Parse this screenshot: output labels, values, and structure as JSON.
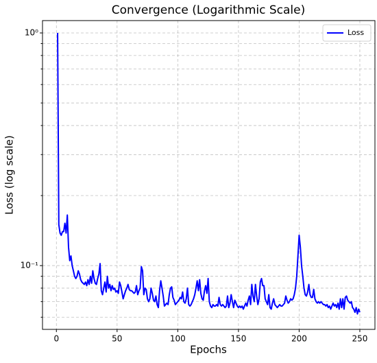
{
  "chart_data": {
    "type": "line",
    "title": "Convergence (Logarithmic Scale)",
    "xlabel": "Epochs",
    "ylabel": "Loss (log scale)",
    "x": [
      1,
      2,
      3,
      4,
      5,
      6,
      7,
      8,
      9,
      10,
      11,
      12,
      13,
      14,
      15,
      16,
      17,
      18,
      19,
      20,
      21,
      22,
      23,
      24,
      25,
      26,
      27,
      28,
      29,
      30,
      31,
      32,
      33,
      34,
      35,
      36,
      37,
      38,
      39,
      40,
      41,
      42,
      43,
      44,
      45,
      46,
      47,
      48,
      49,
      50,
      51,
      52,
      53,
      54,
      55,
      56,
      57,
      58,
      59,
      60,
      61,
      62,
      63,
      64,
      65,
      66,
      67,
      68,
      69,
      70,
      71,
      72,
      73,
      74,
      75,
      76,
      77,
      78,
      79,
      80,
      81,
      82,
      83,
      84,
      85,
      86,
      87,
      88,
      89,
      90,
      91,
      92,
      93,
      94,
      95,
      96,
      97,
      98,
      99,
      100,
      101,
      102,
      103,
      104,
      105,
      106,
      107,
      108,
      109,
      110,
      111,
      112,
      113,
      114,
      115,
      116,
      117,
      118,
      119,
      120,
      121,
      122,
      123,
      124,
      125,
      126,
      127,
      128,
      129,
      130,
      131,
      132,
      133,
      134,
      135,
      136,
      137,
      138,
      139,
      140,
      141,
      142,
      143,
      144,
      145,
      146,
      147,
      148,
      149,
      150,
      151,
      152,
      153,
      154,
      155,
      156,
      157,
      158,
      159,
      160,
      161,
      162,
      163,
      164,
      165,
      166,
      167,
      168,
      169,
      170,
      171,
      172,
      173,
      174,
      175,
      176,
      177,
      178,
      179,
      180,
      181,
      182,
      183,
      184,
      185,
      186,
      187,
      188,
      189,
      190,
      191,
      192,
      193,
      194,
      195,
      196,
      197,
      198,
      199,
      200,
      201,
      202,
      203,
      204,
      205,
      206,
      207,
      208,
      209,
      210,
      211,
      212,
      213,
      214,
      215,
      216,
      217,
      218,
      219,
      220,
      221,
      222,
      223,
      224,
      225,
      226,
      227,
      228,
      229,
      230,
      231,
      232,
      233,
      234,
      235,
      236,
      237,
      238,
      239,
      240,
      241,
      242,
      243,
      244,
      245,
      246,
      247,
      248,
      249,
      250
    ],
    "series": [
      {
        "name": "Loss",
        "color": "#0000ff",
        "values": [
          1.0,
          0.15,
          0.138,
          0.135,
          0.14,
          0.14,
          0.152,
          0.138,
          0.165,
          0.12,
          0.105,
          0.11,
          0.1,
          0.095,
          0.09,
          0.088,
          0.09,
          0.095,
          0.092,
          0.087,
          0.085,
          0.084,
          0.083,
          0.085,
          0.082,
          0.087,
          0.083,
          0.09,
          0.084,
          0.095,
          0.088,
          0.084,
          0.083,
          0.088,
          0.092,
          0.102,
          0.078,
          0.075,
          0.08,
          0.085,
          0.077,
          0.09,
          0.08,
          0.083,
          0.078,
          0.082,
          0.079,
          0.08,
          0.077,
          0.078,
          0.076,
          0.085,
          0.082,
          0.077,
          0.072,
          0.075,
          0.078,
          0.08,
          0.083,
          0.079,
          0.078,
          0.078,
          0.077,
          0.076,
          0.077,
          0.082,
          0.075,
          0.078,
          0.08,
          0.099,
          0.095,
          0.075,
          0.08,
          0.079,
          0.072,
          0.07,
          0.072,
          0.08,
          0.076,
          0.071,
          0.07,
          0.074,
          0.068,
          0.066,
          0.078,
          0.086,
          0.08,
          0.074,
          0.067,
          0.068,
          0.069,
          0.068,
          0.075,
          0.08,
          0.081,
          0.073,
          0.071,
          0.068,
          0.069,
          0.07,
          0.071,
          0.073,
          0.072,
          0.077,
          0.07,
          0.069,
          0.072,
          0.08,
          0.068,
          0.067,
          0.068,
          0.07,
          0.072,
          0.075,
          0.08,
          0.086,
          0.078,
          0.087,
          0.076,
          0.072,
          0.071,
          0.078,
          0.082,
          0.076,
          0.088,
          0.07,
          0.067,
          0.066,
          0.068,
          0.067,
          0.067,
          0.068,
          0.067,
          0.073,
          0.068,
          0.067,
          0.068,
          0.067,
          0.066,
          0.067,
          0.074,
          0.066,
          0.069,
          0.075,
          0.07,
          0.066,
          0.071,
          0.069,
          0.067,
          0.066,
          0.067,
          0.066,
          0.067,
          0.065,
          0.067,
          0.069,
          0.067,
          0.071,
          0.074,
          0.068,
          0.083,
          0.074,
          0.07,
          0.083,
          0.074,
          0.068,
          0.072,
          0.085,
          0.088,
          0.082,
          0.082,
          0.072,
          0.07,
          0.068,
          0.075,
          0.066,
          0.065,
          0.069,
          0.072,
          0.068,
          0.067,
          0.066,
          0.067,
          0.068,
          0.067,
          0.067,
          0.068,
          0.069,
          0.074,
          0.071,
          0.069,
          0.07,
          0.072,
          0.071,
          0.072,
          0.075,
          0.08,
          0.09,
          0.11,
          0.135,
          0.12,
          0.1,
          0.09,
          0.08,
          0.075,
          0.074,
          0.077,
          0.083,
          0.075,
          0.073,
          0.073,
          0.079,
          0.072,
          0.07,
          0.069,
          0.07,
          0.069,
          0.07,
          0.069,
          0.068,
          0.068,
          0.067,
          0.068,
          0.066,
          0.067,
          0.065,
          0.067,
          0.069,
          0.067,
          0.068,
          0.066,
          0.069,
          0.065,
          0.072,
          0.066,
          0.072,
          0.065,
          0.073,
          0.074,
          0.071,
          0.07,
          0.069,
          0.07,
          0.066,
          0.065,
          0.063,
          0.066,
          0.062,
          0.065,
          0.063
        ]
      }
    ],
    "xlim": [
      -11.45,
      262.45
    ],
    "xticks": [
      0,
      50,
      100,
      150,
      200,
      250
    ],
    "ylim": [
      0.0532,
      1.13
    ],
    "ylog": true,
    "yticks": [
      {
        "value": 0.1,
        "label": "10⁻¹"
      },
      {
        "value": 1,
        "label": "10⁰"
      }
    ],
    "yminorticks": [
      0.06,
      0.07,
      0.08,
      0.09,
      0.2,
      0.3,
      0.4,
      0.5,
      0.6,
      0.7,
      0.8,
      0.9
    ],
    "grid": true,
    "legend": "upper right"
  }
}
